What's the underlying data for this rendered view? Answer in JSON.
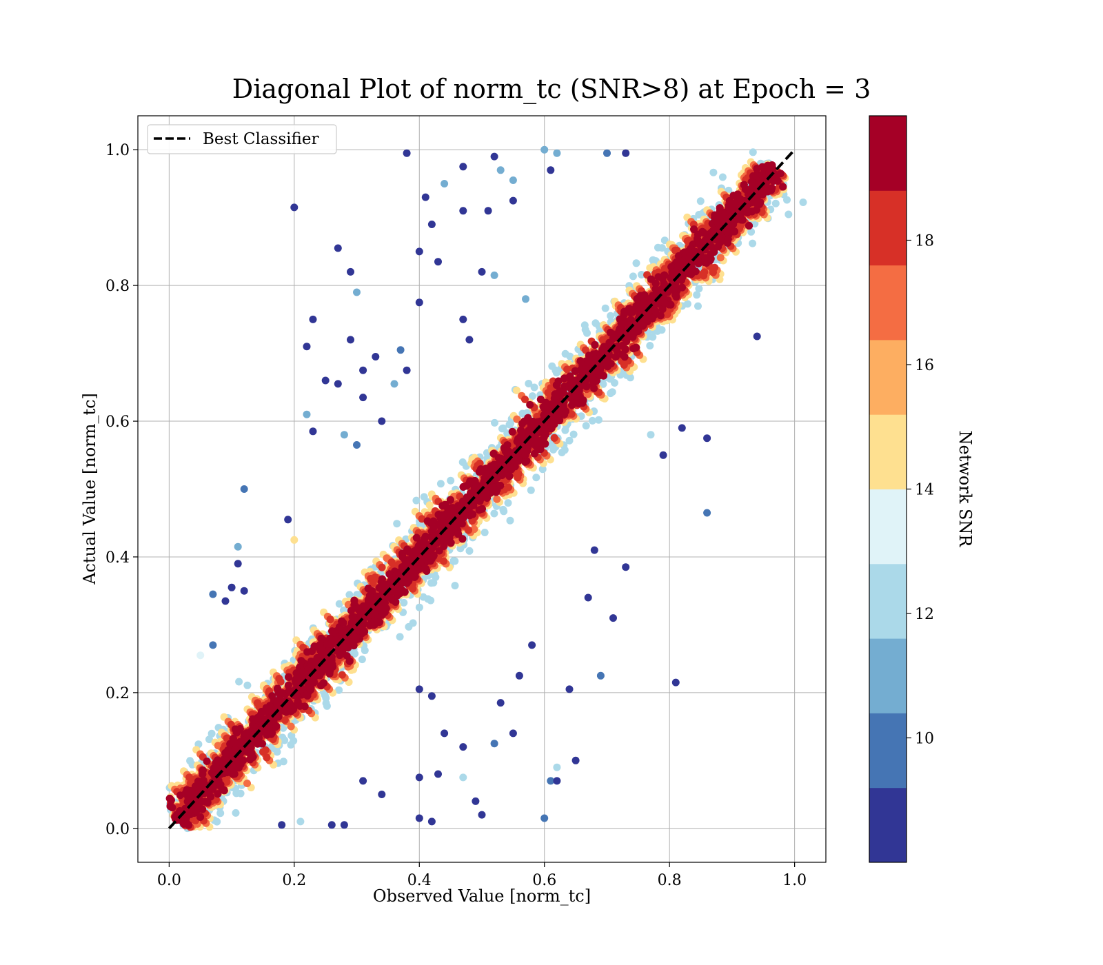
{
  "chart_data": {
    "type": "scatter",
    "title": "Diagonal Plot of norm_tc (SNR>8) at Epoch = 3",
    "xlabel": "Observed Value [norm_tc]",
    "ylabel": "Actual Value [norm_tc]",
    "xlim": [
      -0.05,
      1.05
    ],
    "ylim": [
      -0.05,
      1.05
    ],
    "xticks": [
      "0.0",
      "0.2",
      "0.4",
      "0.6",
      "0.8",
      "1.0"
    ],
    "yticks": [
      "0.0",
      "0.2",
      "0.4",
      "0.6",
      "0.8",
      "1.0"
    ],
    "grid": true,
    "legend": {
      "placement": "top-left",
      "entries": [
        {
          "label": "Best Classifier",
          "style": "black dashed line"
        }
      ]
    },
    "reference_line": {
      "name": "Best Classifier",
      "x": [
        0.0,
        1.0
      ],
      "y": [
        0.0,
        1.0
      ]
    },
    "colorbar": {
      "label": "Network SNR",
      "range": [
        8,
        20
      ],
      "ticks": [
        "10",
        "12",
        "14",
        "16",
        "18"
      ],
      "bins": [
        {
          "from": 8,
          "to": 9.2,
          "color": "#313695"
        },
        {
          "from": 9.2,
          "to": 10.4,
          "color": "#4575b4"
        },
        {
          "from": 10.4,
          "to": 11.6,
          "color": "#74add1"
        },
        {
          "from": 11.6,
          "to": 12.8,
          "color": "#abd9e9"
        },
        {
          "from": 12.8,
          "to": 14.0,
          "color": "#e0f3f8"
        },
        {
          "from": 14.0,
          "to": 15.2,
          "color": "#fee090"
        },
        {
          "from": 15.2,
          "to": 16.4,
          "color": "#fdae61"
        },
        {
          "from": 16.4,
          "to": 17.6,
          "color": "#f46d43"
        },
        {
          "from": 17.6,
          "to": 18.8,
          "color": "#d73027"
        },
        {
          "from": 18.8,
          "to": 20,
          "color": "#a50026"
        }
      ]
    },
    "points": [
      [
        0.38,
        0.995,
        8.5
      ],
      [
        0.52,
        0.99,
        8.5
      ],
      [
        0.6,
        1.0,
        11
      ],
      [
        0.62,
        0.995,
        11
      ],
      [
        0.7,
        0.995,
        10
      ],
      [
        0.73,
        0.995,
        8.5
      ],
      [
        0.2,
        0.915,
        8.5
      ],
      [
        0.44,
        0.95,
        11
      ],
      [
        0.47,
        0.975,
        8.5
      ],
      [
        0.53,
        0.97,
        11
      ],
      [
        0.55,
        0.955,
        11
      ],
      [
        0.61,
        0.97,
        8.5
      ],
      [
        0.41,
        0.93,
        8.5
      ],
      [
        0.42,
        0.89,
        8.5
      ],
      [
        0.47,
        0.91,
        8.5
      ],
      [
        0.51,
        0.91,
        8.5
      ],
      [
        0.55,
        0.925,
        8.5
      ],
      [
        0.27,
        0.855,
        8.5
      ],
      [
        0.29,
        0.82,
        8.5
      ],
      [
        0.3,
        0.79,
        11
      ],
      [
        0.4,
        0.85,
        8.5
      ],
      [
        0.43,
        0.835,
        8.5
      ],
      [
        0.5,
        0.82,
        8.5
      ],
      [
        0.52,
        0.815,
        11
      ],
      [
        0.57,
        0.78,
        11
      ],
      [
        0.23,
        0.75,
        8.5
      ],
      [
        0.22,
        0.71,
        8.5
      ],
      [
        0.29,
        0.72,
        8.5
      ],
      [
        0.4,
        0.775,
        8.5
      ],
      [
        0.47,
        0.75,
        8.5
      ],
      [
        0.48,
        0.72,
        8.5
      ],
      [
        0.25,
        0.66,
        8.5
      ],
      [
        0.27,
        0.655,
        8.5
      ],
      [
        0.31,
        0.675,
        8.5
      ],
      [
        0.33,
        0.695,
        8.5
      ],
      [
        0.37,
        0.705,
        10
      ],
      [
        0.38,
        0.675,
        8.5
      ],
      [
        0.36,
        0.655,
        11
      ],
      [
        0.31,
        0.635,
        8.5
      ],
      [
        0.22,
        0.61,
        11
      ],
      [
        0.23,
        0.585,
        8.5
      ],
      [
        0.28,
        0.58,
        11
      ],
      [
        0.3,
        0.565,
        10
      ],
      [
        0.34,
        0.6,
        8.5
      ],
      [
        0.12,
        0.5,
        10
      ],
      [
        0.11,
        0.415,
        11
      ],
      [
        0.11,
        0.39,
        8.5
      ],
      [
        0.19,
        0.455,
        8.5
      ],
      [
        0.2,
        0.425,
        14
      ],
      [
        0.1,
        0.355,
        8.5
      ],
      [
        0.12,
        0.35,
        8.5
      ],
      [
        0.07,
        0.345,
        10
      ],
      [
        0.09,
        0.335,
        8.5
      ],
      [
        0.07,
        0.27,
        10
      ],
      [
        0.05,
        0.255,
        13
      ],
      [
        0.64,
        0.205,
        8.5
      ],
      [
        0.69,
        0.225,
        10
      ],
      [
        0.81,
        0.215,
        8.5
      ],
      [
        0.61,
        0.07,
        10
      ],
      [
        0.62,
        0.07,
        8.5
      ],
      [
        0.65,
        0.1,
        8.5
      ],
      [
        0.6,
        0.015,
        10
      ],
      [
        0.47,
        0.075,
        12
      ],
      [
        0.42,
        0.01,
        8.5
      ],
      [
        0.4,
        0.015,
        8.5
      ],
      [
        0.49,
        0.04,
        8.5
      ],
      [
        0.5,
        0.02,
        8.5
      ],
      [
        0.4,
        0.075,
        8.5
      ],
      [
        0.43,
        0.08,
        8.5
      ],
      [
        0.44,
        0.14,
        8.5
      ],
      [
        0.47,
        0.12,
        8.5
      ],
      [
        0.52,
        0.125,
        10
      ],
      [
        0.55,
        0.14,
        8.5
      ],
      [
        0.53,
        0.185,
        8.5
      ],
      [
        0.4,
        0.205,
        8.5
      ],
      [
        0.42,
        0.195,
        8.5
      ],
      [
        0.56,
        0.225,
        8.5
      ],
      [
        0.58,
        0.27,
        8.5
      ],
      [
        0.62,
        0.09,
        12
      ],
      [
        0.67,
        0.34,
        8.5
      ],
      [
        0.71,
        0.31,
        8.5
      ],
      [
        0.73,
        0.385,
        8.5
      ],
      [
        0.68,
        0.41,
        8.5
      ],
      [
        0.79,
        0.55,
        8.5
      ],
      [
        0.82,
        0.59,
        8.5
      ],
      [
        0.86,
        0.575,
        8.5
      ],
      [
        0.86,
        0.465,
        10
      ],
      [
        0.94,
        0.725,
        8.5
      ],
      [
        0.77,
        0.58,
        12
      ],
      [
        0.26,
        0.005,
        8.5
      ],
      [
        0.28,
        0.005,
        8.5
      ],
      [
        0.18,
        0.005,
        8.5
      ],
      [
        0.21,
        0.01,
        12
      ],
      [
        0.34,
        0.05,
        8.5
      ],
      [
        0.31,
        0.07,
        8.5
      ]
    ],
    "dense_band": {
      "description": "thousands of points tightly clustered along y = x from (0, 0) to (0.97, 1.0), core colored at the top of the SNR scale",
      "core_snr": 19.5
    }
  }
}
